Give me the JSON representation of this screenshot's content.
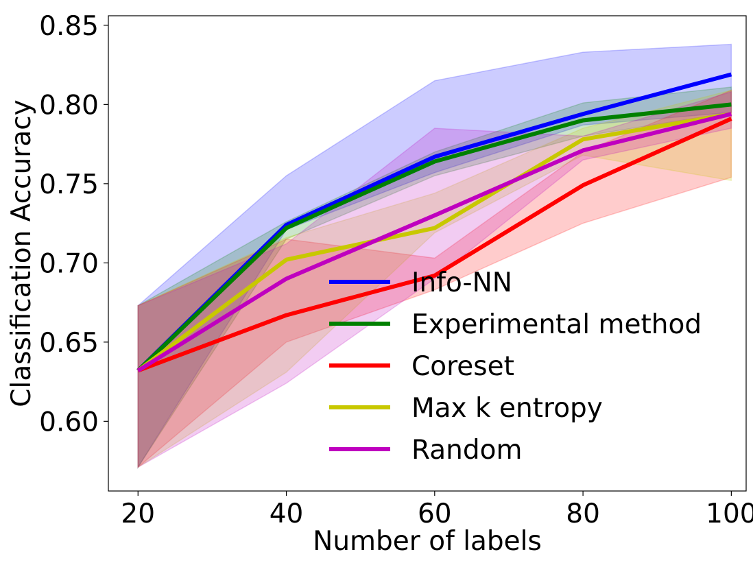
{
  "chart_data": {
    "type": "line",
    "title": "",
    "xlabel": "Number of labels",
    "ylabel": "Classification Accuracy",
    "x": [
      20,
      40,
      60,
      80,
      100
    ],
    "xlim": [
      16,
      102
    ],
    "ylim": [
      0.556,
      0.856
    ],
    "xticks": [
      20,
      40,
      60,
      80,
      100
    ],
    "yticks": [
      0.6,
      0.65,
      0.7,
      0.75,
      0.8,
      0.85
    ],
    "ytick_labels": [
      "0.60",
      "0.65",
      "0.70",
      "0.75",
      "0.80",
      "0.85"
    ],
    "grid": false,
    "legend_position": "lower-right",
    "series": [
      {
        "name": "Info-NN",
        "color": "#0000ff",
        "values": [
          0.632,
          0.724,
          0.767,
          0.794,
          0.819
        ],
        "lower": [
          0.571,
          0.721,
          0.757,
          0.787,
          0.795
        ],
        "upper": [
          0.673,
          0.755,
          0.815,
          0.833,
          0.838
        ]
      },
      {
        "name": "Experimental method",
        "color": "#008000",
        "values": [
          0.632,
          0.722,
          0.764,
          0.79,
          0.8
        ],
        "lower": [
          0.571,
          0.715,
          0.755,
          0.78,
          0.795
        ],
        "upper": [
          0.673,
          0.726,
          0.77,
          0.801,
          0.811
        ]
      },
      {
        "name": "Coreset",
        "color": "#ff0000",
        "values": [
          0.632,
          0.667,
          0.692,
          0.749,
          0.791
        ],
        "lower": [
          0.571,
          0.65,
          0.683,
          0.725,
          0.754
        ],
        "upper": [
          0.673,
          0.715,
          0.703,
          0.77,
          0.809
        ]
      },
      {
        "name": "Max k entropy",
        "color": "#c8c800",
        "values": [
          0.632,
          0.702,
          0.722,
          0.778,
          0.794
        ],
        "lower": [
          0.571,
          0.631,
          0.719,
          0.768,
          0.752
        ],
        "upper": [
          0.673,
          0.716,
          0.744,
          0.785,
          0.809
        ]
      },
      {
        "name": "Random",
        "color": "#bf00bf",
        "values": [
          0.632,
          0.69,
          0.73,
          0.771,
          0.794
        ],
        "lower": [
          0.571,
          0.624,
          0.69,
          0.765,
          0.785
        ],
        "upper": [
          0.673,
          0.712,
          0.785,
          0.78,
          0.808
        ]
      }
    ]
  }
}
